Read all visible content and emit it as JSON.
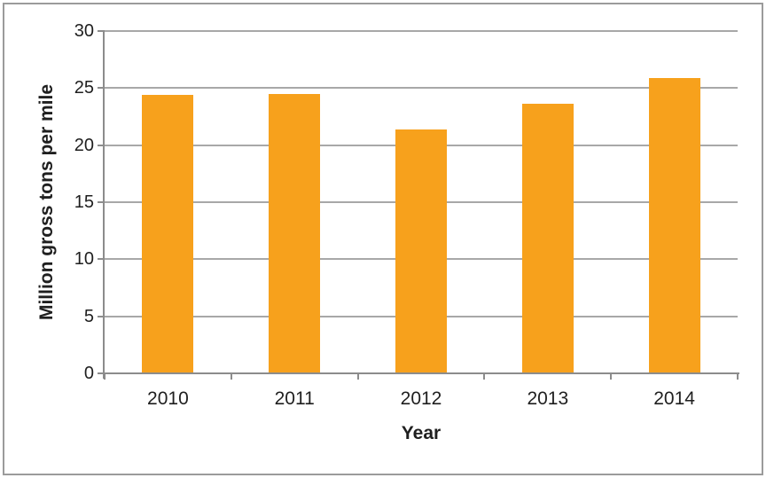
{
  "chart_data": {
    "type": "bar",
    "title": "",
    "categories": [
      "2010",
      "2011",
      "2012",
      "2013",
      "2014"
    ],
    "values": [
      24.4,
      24.5,
      21.4,
      23.6,
      25.9
    ],
    "xlabel": "Year",
    "ylabel": "Million gross tons per mile",
    "ylim": [
      0,
      30
    ],
    "yticks": [
      0,
      5,
      10,
      15,
      20,
      25,
      30
    ],
    "grid": "horizontal-only",
    "legend_position": "none",
    "bar_color": "#f7a11c",
    "gridline_color": "#a8a8a8",
    "axis_color": "#8c8c8c",
    "text_color": "#1f1f1f",
    "frame_border_color": "#9b9b9b",
    "background_color": "#ffffff"
  }
}
